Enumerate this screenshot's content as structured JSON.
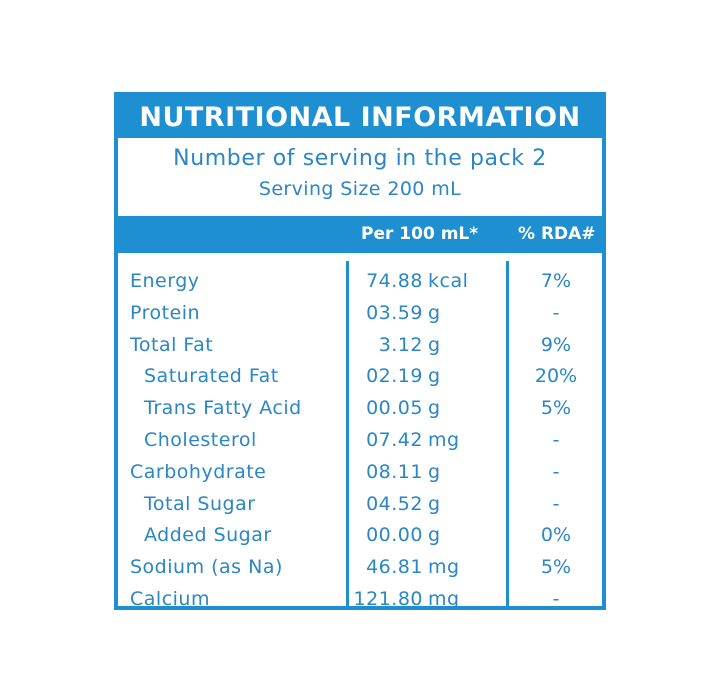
{
  "title": "NUTRITIONAL INFORMATION",
  "serving": {
    "servings_per_pack": "Number of serving in the pack 2",
    "serving_size": "Serving Size 200 mL"
  },
  "columns": {
    "per": "Per 100 mL*",
    "rda": "% RDA#"
  },
  "colors": {
    "accent": "#1e8fd0",
    "text": "#2a86c4",
    "background": "#ffffff"
  },
  "rows": [
    {
      "name": "Energy",
      "value": "74.88",
      "unit": "kcal",
      "rda": "7%",
      "indent": false
    },
    {
      "name": "Protein",
      "value": "03.59",
      "unit": "g",
      "rda": "-",
      "indent": false
    },
    {
      "name": "Total Fat",
      "value": "3.12",
      "unit": "g",
      "rda": "9%",
      "indent": false
    },
    {
      "name": "Saturated Fat",
      "value": "02.19",
      "unit": "g",
      "rda": "20%",
      "indent": true
    },
    {
      "name": "Trans Fatty Acid",
      "value": "00.05",
      "unit": "g",
      "rda": "5%",
      "indent": true
    },
    {
      "name": "Cholesterol",
      "value": "07.42",
      "unit": "mg",
      "rda": "-",
      "indent": true
    },
    {
      "name": "Carbohydrate",
      "value": "08.11",
      "unit": "g",
      "rda": "-",
      "indent": false
    },
    {
      "name": "Total Sugar",
      "value": "04.52",
      "unit": "g",
      "rda": "-",
      "indent": true
    },
    {
      "name": "Added Sugar",
      "value": "00.00",
      "unit": "g",
      "rda": "0%",
      "indent": true
    },
    {
      "name": "Sodium (as Na)",
      "value": "46.81",
      "unit": "mg",
      "rda": "5%",
      "indent": false
    },
    {
      "name": "Calcium",
      "value": "121.80",
      "unit": "mg",
      "rda": "-",
      "indent": false
    }
  ]
}
